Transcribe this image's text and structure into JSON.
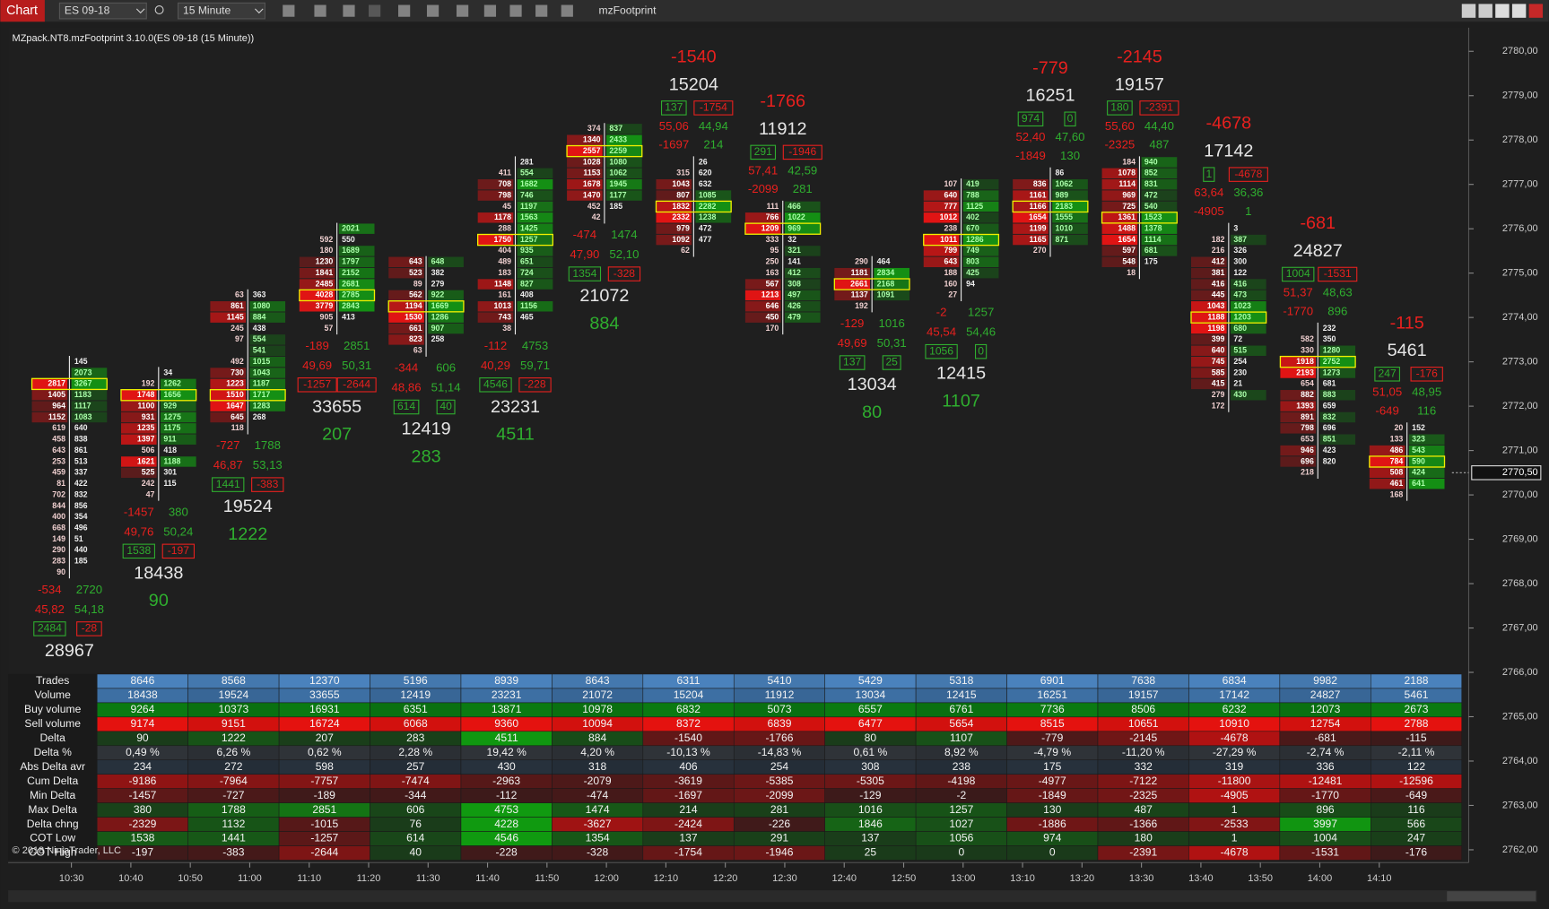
{
  "toolbar": {
    "tab": "Chart",
    "instrument": "ES 09-18",
    "interval": "15 Minute",
    "indicator": "mzFootprint"
  },
  "chart": {
    "title": "MZpack.NT8.mzFootprint 3.10.0(ES 09-18 (15 Minute))",
    "copyright": "© 2018 NinjaTrader, LLC",
    "price_axis": [
      {
        "value": 2780,
        "label": "2780,00"
      },
      {
        "value": 2779,
        "label": "2779,00"
      },
      {
        "value": 2778,
        "label": "2778,00"
      },
      {
        "value": 2777,
        "label": "2777,00"
      },
      {
        "value": 2776,
        "label": "2776,00"
      },
      {
        "value": 2775,
        "label": "2775,00"
      },
      {
        "value": 2774,
        "label": "2774,00"
      },
      {
        "value": 2773,
        "label": "2773,00"
      },
      {
        "value": 2772,
        "label": "2772,00"
      },
      {
        "value": 2771,
        "label": "2771,00"
      },
      {
        "value": 2770,
        "label": "2770,00"
      },
      {
        "value": 2769,
        "label": "2769,00"
      },
      {
        "value": 2768,
        "label": "2768,00"
      },
      {
        "value": 2767,
        "label": "2767,00"
      },
      {
        "value": 2766,
        "label": "2766,00"
      },
      {
        "value": 2765,
        "label": "2765,00"
      },
      {
        "value": 2764,
        "label": "2764,00"
      },
      {
        "value": 2763,
        "label": "2763,00"
      },
      {
        "value": 2762,
        "label": "2762,00"
      }
    ],
    "current_price": {
      "value": 2770.5,
      "label": "2770,50"
    },
    "time_axis": [
      "10:30",
      "10:40",
      "10:50",
      "11:00",
      "11:10",
      "11:20",
      "11:30",
      "11:40",
      "11:50",
      "12:00",
      "12:10",
      "12:20",
      "12:30",
      "12:40",
      "12:50",
      "13:00",
      "13:10",
      "13:20",
      "13:30",
      "13:40",
      "13:50",
      "14:00",
      "14:10"
    ],
    "bars": [
      {
        "high": 2773.0,
        "low": 2768.25,
        "bid": [
          null,
          null,
          2817,
          1405,
          964,
          1152,
          619,
          458,
          643,
          253,
          459,
          81,
          702,
          844,
          400,
          668,
          149,
          290,
          283,
          90
        ],
        "ask": [
          145,
          2073,
          3267,
          1183,
          1117,
          1083,
          640,
          838,
          861,
          513,
          337,
          422,
          832,
          856,
          354,
          496,
          51,
          440,
          185,
          null
        ],
        "summary_position": "below",
        "min_delta": -534,
        "max_delta": 2720,
        "sell_pct": "45,82",
        "buy_pct": "54,18",
        "cot_low": 2484,
        "cot_high": -28,
        "volume": 28967
      },
      {
        "high": 2772.75,
        "low": 2770.0,
        "bid": [
          null,
          192,
          1748,
          1100,
          931,
          1235,
          1397,
          506,
          1621,
          525,
          242,
          47
        ],
        "ask": [
          34,
          1262,
          1656,
          929,
          1275,
          1175,
          911,
          418,
          1188,
          301,
          115,
          null
        ],
        "summary_position": "below",
        "min_delta": -1457,
        "max_delta": 380,
        "sell_pct": "49,76",
        "buy_pct": "50,24",
        "cot_low": 1538,
        "cot_high": -197,
        "volume": 18438,
        "delta": 90
      },
      {
        "high": 2774.5,
        "low": 2771.5,
        "bid": [
          63,
          861,
          1145,
          245,
          97,
          null,
          492,
          730,
          1223,
          1510,
          1647,
          645,
          118
        ],
        "ask": [
          363,
          1080,
          884,
          438,
          554,
          541,
          1015,
          1043,
          1187,
          1717,
          1283,
          268,
          null
        ],
        "summary_position": "below",
        "min_delta": -727,
        "max_delta": 1788,
        "sell_pct": "46,87",
        "buy_pct": "53,13",
        "cot_low": 1441,
        "cot_high": -383,
        "volume": 19524,
        "delta": 1222
      },
      {
        "high": 2776.0,
        "low": 2773.75,
        "bid": [
          null,
          592,
          180,
          1230,
          1841,
          2485,
          4028,
          3779,
          905,
          57
        ],
        "ask": [
          2021,
          550,
          1689,
          1797,
          2152,
          2681,
          2785,
          2843,
          413,
          null
        ],
        "summary_position": "below",
        "min_delta": -189,
        "max_delta": 2851,
        "sell_pct": "49,69",
        "buy_pct": "50,31",
        "cot_low": -1257,
        "cot_high": -2644,
        "volume": 33655,
        "delta": 207
      },
      {
        "high": 2775.25,
        "low": 2773.25,
        "bid": [
          643,
          523,
          89,
          562,
          1194,
          1530,
          661,
          823,
          63
        ],
        "ask": [
          648,
          382,
          279,
          922,
          1669,
          1286,
          907,
          258,
          null
        ],
        "summary_position": "below",
        "min_delta": -344,
        "max_delta": 606,
        "sell_pct": "48,86",
        "buy_pct": "51,14",
        "cot_low": 614,
        "cot_high": 40,
        "volume": 12419,
        "delta": 283
      },
      {
        "high": 2777.5,
        "low": 2773.75,
        "bid": [
          null,
          411,
          708,
          798,
          45,
          1178,
          288,
          1750,
          404,
          489,
          183,
          1148,
          161,
          1013,
          743,
          38
        ],
        "ask": [
          281,
          554,
          1682,
          746,
          1197,
          1563,
          1425,
          1257,
          935,
          651,
          724,
          827,
          408,
          1156,
          465,
          null
        ],
        "summary_position": "below",
        "min_delta": -112,
        "max_delta": 4753,
        "sell_pct": "40,29",
        "buy_pct": "59,71",
        "cot_low": 4546,
        "cot_high": -228,
        "volume": 23231,
        "delta": 4511
      },
      {
        "high": 2778.25,
        "low": 2776.25,
        "bid": [
          374,
          1340,
          2557,
          1028,
          1153,
          1678,
          1470,
          452,
          42
        ],
        "ask": [
          837,
          2433,
          2259,
          1080,
          1062,
          1945,
          1177,
          185,
          null
        ],
        "summary_position": "below",
        "min_delta": -474,
        "max_delta": 1474,
        "sell_pct": "47,90",
        "buy_pct": "52,10",
        "cot_low": 1354,
        "cot_high": -328,
        "volume": 21072,
        "delta": 884
      },
      {
        "high": 2777.5,
        "low": 2775.5,
        "bid": [
          null,
          315,
          1043,
          807,
          1832,
          2332,
          979,
          1092,
          62
        ],
        "ask": [
          26,
          620,
          632,
          1085,
          2282,
          1238,
          472,
          477,
          null
        ],
        "summary_position": "above",
        "min_delta": -1697,
        "max_delta": 214,
        "sell_pct": "55,06",
        "buy_pct": "44,94",
        "cot_low": 137,
        "cot_high": -1754,
        "volume": 15204,
        "delta": -1540
      },
      {
        "high": 2776.5,
        "low": 2773.75,
        "bid": [
          111,
          766,
          1209,
          333,
          95,
          250,
          163,
          567,
          1213,
          646,
          450,
          170
        ],
        "ask": [
          466,
          1022,
          969,
          32,
          321,
          141,
          412,
          308,
          497,
          426,
          479,
          null
        ],
        "summary_position": "above",
        "min_delta": -2099,
        "max_delta": 281,
        "sell_pct": "57,41",
        "buy_pct": "42,59",
        "cot_low": 291,
        "cot_high": -1946,
        "volume": 11912,
        "delta": -1766
      },
      {
        "high": 2775.25,
        "low": 2774.25,
        "bid": [
          290,
          1181,
          2661,
          1137,
          192
        ],
        "ask": [
          464,
          2834,
          2168,
          1091,
          null
        ],
        "summary_position": "below",
        "min_delta": -129,
        "max_delta": 1016,
        "sell_pct": "49,69",
        "buy_pct": "50,31",
        "cot_low": 137,
        "cot_high": 25,
        "volume": 13034,
        "delta": 80
      },
      {
        "high": 2777.0,
        "low": 2774.5,
        "bid": [
          107,
          640,
          777,
          1012,
          238,
          1011,
          799,
          643,
          188,
          160,
          27
        ],
        "ask": [
          419,
          788,
          1125,
          402,
          670,
          1286,
          749,
          803,
          425,
          94,
          null
        ],
        "summary_position": "below",
        "min_delta": -2,
        "max_delta": 1257,
        "sell_pct": "45,54",
        "buy_pct": "54,46",
        "cot_low": 1056,
        "cot_high": 0,
        "volume": 12415,
        "delta": 1107
      },
      {
        "high": 2777.25,
        "low": 2775.5,
        "bid": [
          null,
          836,
          1161,
          1166,
          1654,
          1199,
          1165,
          270
        ],
        "ask": [
          86,
          1062,
          989,
          2183,
          1555,
          1010,
          871,
          null
        ],
        "summary_position": "above",
        "min_delta": -1849,
        "max_delta": 130,
        "sell_pct": "52,40",
        "buy_pct": "47,60",
        "cot_low": 974,
        "cot_high": 0,
        "volume": 16251,
        "delta": -779
      },
      {
        "high": 2777.5,
        "low": 2775.0,
        "bid": [
          184,
          1078,
          1114,
          969,
          725,
          1361,
          1488,
          1654,
          597,
          548,
          18
        ],
        "ask": [
          940,
          852,
          831,
          472,
          540,
          1523,
          1378,
          1114,
          681,
          175,
          null
        ],
        "summary_position": "above",
        "min_delta": -2325,
        "max_delta": 487,
        "sell_pct": "55,60",
        "buy_pct": "44,40",
        "cot_low": 180,
        "cot_high": -2391,
        "volume": 19157,
        "delta": -2145
      },
      {
        "high": 2776.0,
        "low": 2772.0,
        "bid": [
          null,
          182,
          216,
          412,
          381,
          416,
          445,
          1043,
          1188,
          1198,
          399,
          640,
          745,
          585,
          415,
          279,
          172
        ],
        "ask": [
          3,
          387,
          326,
          300,
          122,
          416,
          473,
          1023,
          1203,
          680,
          72,
          515,
          254,
          230,
          21,
          430,
          null
        ],
        "summary_position": "above",
        "min_delta": -4905,
        "max_delta": 1,
        "sell_pct": "63,64",
        "buy_pct": "36,36",
        "cot_low": 1,
        "cot_high": -4678,
        "volume": 17142,
        "delta": -4678
      },
      {
        "high": 2773.75,
        "low": 2770.5,
        "bid": [
          null,
          582,
          330,
          1918,
          2193,
          654,
          882,
          1393,
          891,
          798,
          653,
          946,
          696,
          218
        ],
        "ask": [
          232,
          350,
          1280,
          2752,
          1273,
          681,
          883,
          659,
          832,
          696,
          851,
          423,
          820,
          null
        ],
        "summary_position": "above",
        "min_delta": -1770,
        "max_delta": 896,
        "sell_pct": "51,37",
        "buy_pct": "48,63",
        "cot_low": 1004,
        "cot_high": -1531,
        "volume": 24827,
        "delta": -681
      },
      {
        "high": 2771.5,
        "low": 2770.0,
        "bid": [
          20,
          133,
          486,
          784,
          508,
          461,
          168
        ],
        "ask": [
          152,
          323,
          543,
          590,
          424,
          641,
          null
        ],
        "summary_position": "above",
        "min_delta": -649,
        "max_delta": 116,
        "sell_pct": "51,05",
        "buy_pct": "48,95",
        "cot_low": 247,
        "cot_high": -176,
        "volume": 5461,
        "delta": -115
      }
    ],
    "table": {
      "rows": [
        {
          "label": "Trades",
          "color": "#4a82bd",
          "values": [
            8646,
            8568,
            12370,
            5196,
            8939,
            8643,
            6311,
            5410,
            5429,
            5318,
            6901,
            7638,
            6834,
            9982,
            2188
          ]
        },
        {
          "label": "Volume",
          "color": "#3d6fa3",
          "values": [
            18438,
            19524,
            33655,
            12419,
            23231,
            21072,
            15204,
            11912,
            13034,
            12415,
            16251,
            19157,
            17142,
            24827,
            5461
          ]
        },
        {
          "label": "Buy volume",
          "color": "#0b7a12",
          "values": [
            9264,
            10373,
            16931,
            6351,
            13871,
            10978,
            6832,
            5073,
            6557,
            6761,
            7736,
            8506,
            6232,
            12073,
            2673
          ]
        },
        {
          "label": "Sell volume",
          "color": "#e4120f",
          "values": [
            9174,
            9151,
            16724,
            6068,
            9360,
            10094,
            8372,
            6839,
            6477,
            5654,
            8515,
            10651,
            10910,
            12754,
            2788
          ]
        },
        {
          "label": "Delta",
          "values": [
            90,
            1222,
            207,
            283,
            4511,
            884,
            -1540,
            -1766,
            80,
            1107,
            -779,
            -2145,
            -4678,
            -681,
            -115
          ]
        },
        {
          "label": "Delta %",
          "color": "#2f3338",
          "values": [
            "0,49 %",
            "6,26 %",
            "0,62 %",
            "2,28 %",
            "19,42 %",
            "4,20 %",
            "-10,13 %",
            "-14,83 %",
            "0,61 %",
            "8,92 %",
            "-4,79 %",
            "-11,20 %",
            "-27,29 %",
            "-2,74 %",
            "-2,11 %"
          ]
        },
        {
          "label": "Abs Delta avr",
          "color": "#27313c",
          "values": [
            234,
            272,
            598,
            257,
            430,
            318,
            406,
            254,
            308,
            238,
            175,
            332,
            319,
            336,
            122
          ]
        },
        {
          "label": "Cum Delta",
          "values": [
            -9186,
            -7964,
            -7757,
            -7474,
            -2963,
            -2079,
            -3619,
            -5385,
            -5305,
            -4198,
            -4977,
            -7122,
            -11800,
            -12481,
            -12596
          ]
        },
        {
          "label": "Min Delta",
          "values": [
            -1457,
            -727,
            -189,
            -344,
            -112,
            -474,
            -1697,
            -2099,
            -129,
            -2,
            -1849,
            -2325,
            -4905,
            -1770,
            -649
          ]
        },
        {
          "label": "Max Delta",
          "values": [
            380,
            1788,
            2851,
            606,
            4753,
            1474,
            214,
            281,
            1016,
            1257,
            130,
            487,
            1,
            896,
            116
          ]
        },
        {
          "label": "Delta chng",
          "values": [
            -2329,
            1132,
            -1015,
            76,
            4228,
            -3627,
            -2424,
            -226,
            1846,
            1027,
            -1886,
            -1366,
            -2533,
            3997,
            566
          ]
        },
        {
          "label": "COT Low",
          "values": [
            1538,
            1441,
            -1257,
            614,
            4546,
            1354,
            137,
            291,
            137,
            1056,
            974,
            180,
            1,
            1004,
            247
          ]
        },
        {
          "label": "COT High",
          "values": [
            -197,
            -383,
            -2644,
            40,
            -228,
            -328,
            -1754,
            -1946,
            25,
            0,
            0,
            -2391,
            -4678,
            -1531,
            -176
          ]
        }
      ]
    }
  }
}
